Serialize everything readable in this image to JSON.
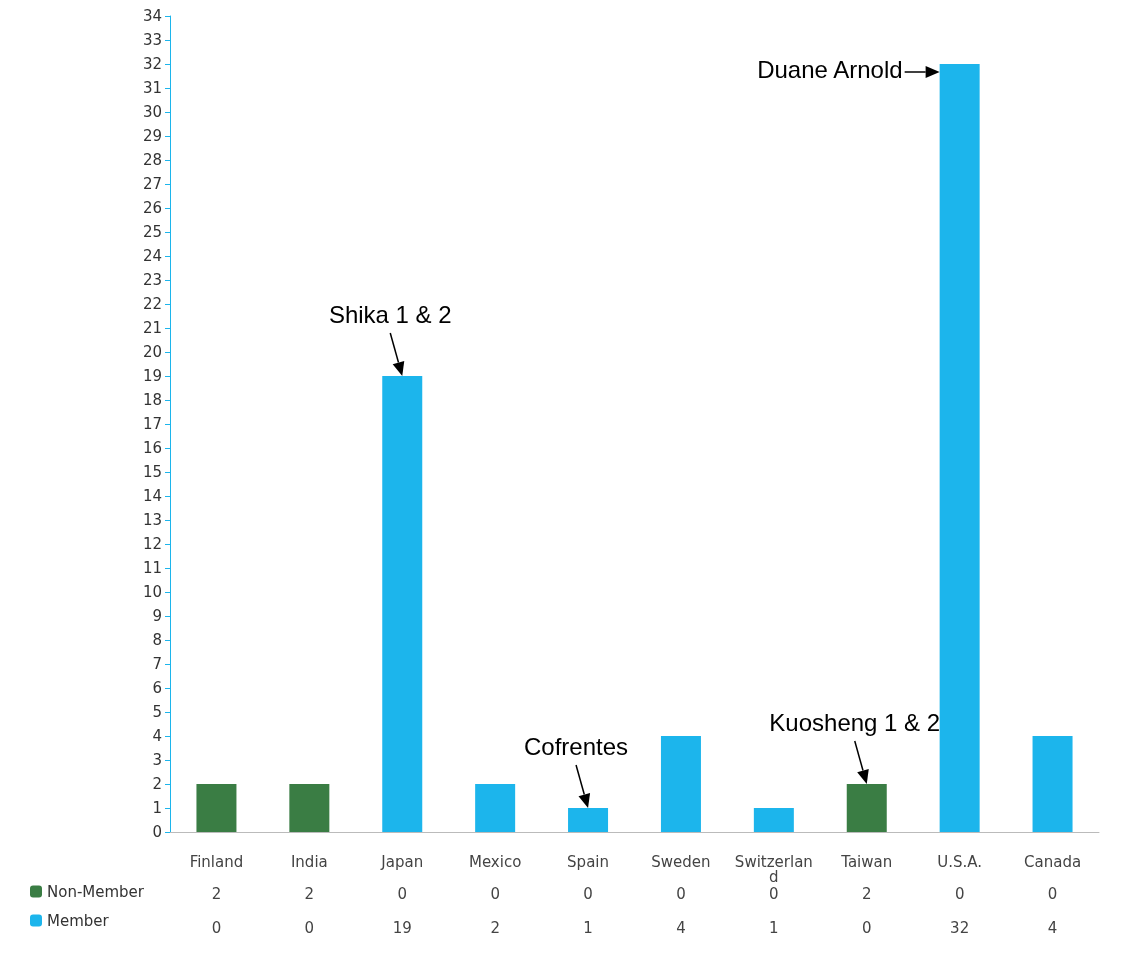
{
  "chart_data": {
    "type": "bar",
    "stacked": true,
    "categories": [
      "Finland",
      "India",
      "Japan",
      "Mexico",
      "Spain",
      "Sweden",
      "Switzerland",
      "Taiwan",
      "U.S.A.",
      "Canada"
    ],
    "series": [
      {
        "name": "Non-Member",
        "color": "#3a7d44",
        "values": [
          2,
          2,
          0,
          0,
          0,
          0,
          0,
          2,
          0,
          0
        ]
      },
      {
        "name": "Member",
        "color": "#1cb5ec",
        "values": [
          0,
          0,
          19,
          2,
          1,
          4,
          1,
          0,
          32,
          4
        ]
      }
    ],
    "ylim": [
      0,
      34
    ],
    "yticks": [
      0,
      1,
      2,
      3,
      4,
      5,
      6,
      7,
      8,
      9,
      10,
      11,
      12,
      13,
      14,
      15,
      16,
      17,
      18,
      19,
      20,
      21,
      22,
      23,
      24,
      25,
      26,
      27,
      28,
      29,
      30,
      31,
      32,
      33,
      34
    ],
    "grid": false,
    "legend": "bottom left",
    "data_labels": true,
    "annotations": [
      {
        "text": "Shika 1 & 2",
        "x": "Japan",
        "y": 19
      },
      {
        "text": "Duane Arnold",
        "x": "U.S.A.",
        "y": 32
      },
      {
        "text": "Cofrentes",
        "x": "Spain",
        "y": 1
      },
      {
        "text": "Kuosheng 1 & 2",
        "x": "Taiwan",
        "y": 2
      }
    ]
  }
}
